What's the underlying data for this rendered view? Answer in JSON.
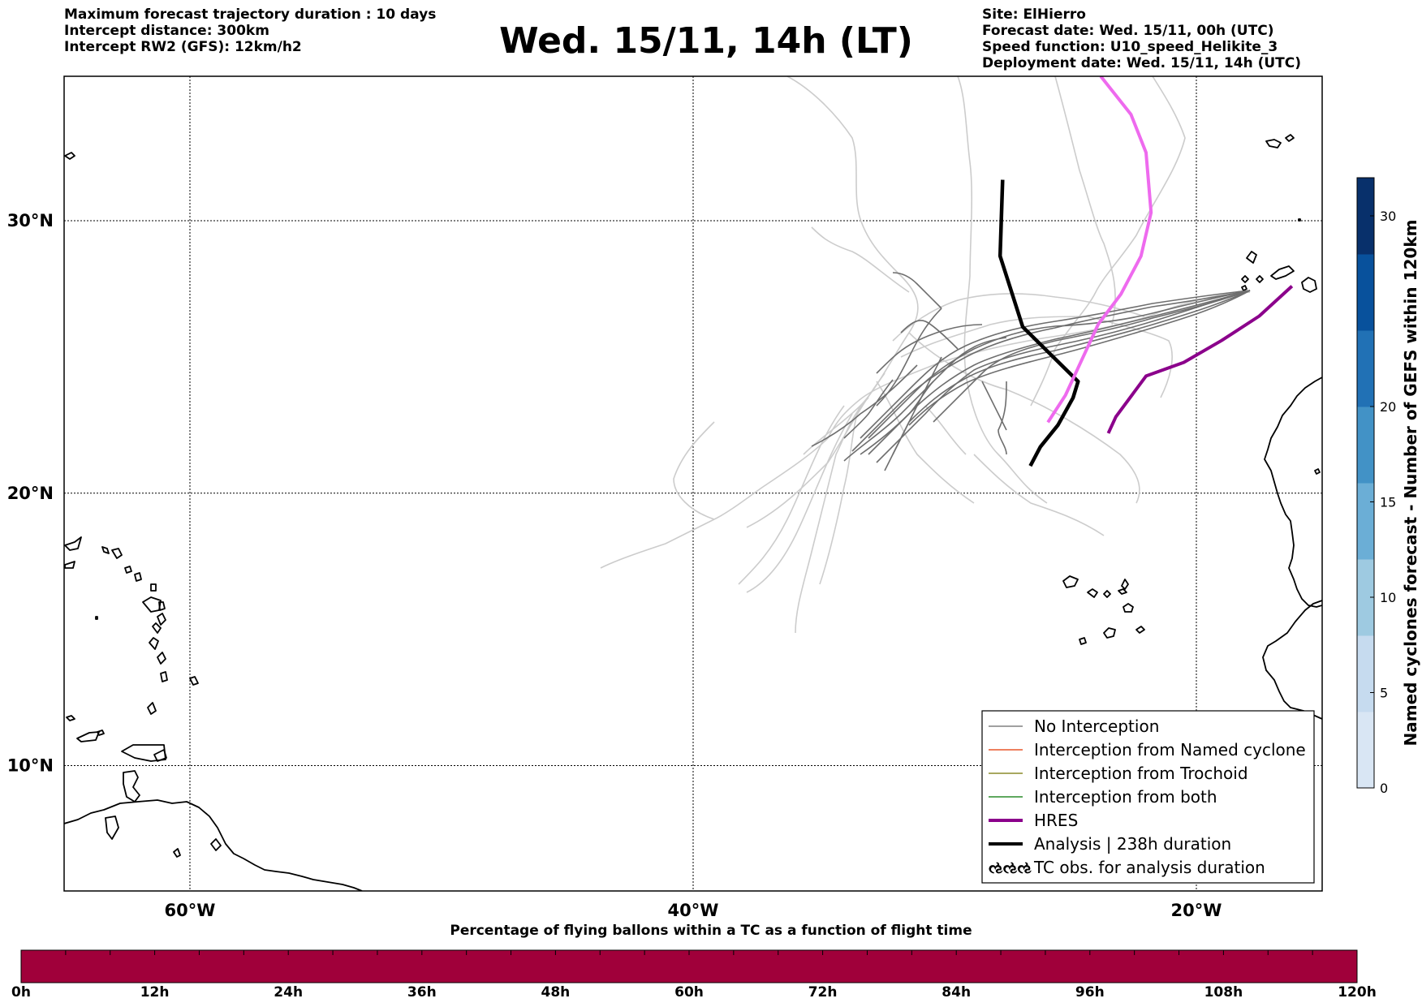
{
  "header": {
    "left_lines": [
      "Maximum forecast trajectory duration : 10 days",
      "Intercept distance: 300km",
      "Intercept RW2 (GFS):  12km/h2"
    ],
    "title": "Wed. 15/11, 14h (LT)",
    "right_lines": [
      "Site: ElHierro",
      "Forecast date: Wed. 15/11, 00h (UTC)",
      "Speed function: U10_speed_Helikite_3",
      "Deployment date: Wed. 15/11, 14h (UTC)"
    ]
  },
  "map": {
    "lat_labels": [
      "30°N",
      "20°N",
      "10°N"
    ],
    "lon_labels": [
      "60°W",
      "40°W",
      "20°W"
    ],
    "lat_values": [
      30,
      20,
      10
    ],
    "lon_values": [
      -60,
      -40,
      -20
    ],
    "extent": {
      "lon_min": -65,
      "lon_max": -15,
      "lat_min": 5.4,
      "lat_max": 35.3
    },
    "grid": true
  },
  "legend": {
    "items": [
      {
        "label": "No Interception",
        "color": "#808080",
        "style": "thin"
      },
      {
        "label": "Interception from Named cyclone",
        "color": "#e8562a",
        "style": "thin"
      },
      {
        "label": "Interception from Trochoid",
        "color": "#8c8c2a",
        "style": "thin"
      },
      {
        "label": "Interception from both",
        "color": "#2a8c2a",
        "style": "thin"
      },
      {
        "label": "HRES",
        "color": "#8b008b",
        "style": "thick"
      },
      {
        "label": "Analysis | 238h duration",
        "color": "#000000",
        "style": "thick"
      },
      {
        "label": "TC obs. for analysis duration",
        "color": "#000000",
        "style": "symbol",
        "symbol": "ઌઌઌ"
      }
    ]
  },
  "colorbar_right": {
    "label": "Named cyclones forecast - Number of GEFS within 120km",
    "ticks": [
      "0",
      "5",
      "10",
      "15",
      "20",
      "30"
    ],
    "tick_values": [
      0,
      5,
      10,
      15,
      20,
      30
    ],
    "max": 32,
    "colors": [
      "#d9e6f4",
      "#c6dbef",
      "#9ecae1",
      "#6baed6",
      "#4292c6",
      "#2171b5",
      "#08519c",
      "#08306b"
    ]
  },
  "timebar": {
    "title": "Percentage of flying ballons within a TC as a function of flight time",
    "labels": [
      "0h",
      "12h",
      "24h",
      "36h",
      "48h",
      "60h",
      "72h",
      "84h",
      "96h",
      "108h",
      "120h"
    ],
    "hours": [
      0,
      12,
      24,
      36,
      48,
      60,
      72,
      84,
      96,
      108,
      120
    ],
    "color": "#a0003a"
  },
  "chart_data": {
    "type": "map-trajectories",
    "site": "ElHierro",
    "analysis_track": [
      [
        -27.7,
        31.5
      ],
      [
        -27.8,
        28.7
      ],
      [
        -26.9,
        26.1
      ],
      [
        -24.7,
        24.1
      ],
      [
        -24.9,
        23.5
      ],
      [
        -25.5,
        22.5
      ],
      [
        -26.2,
        21.7
      ],
      [
        -26.6,
        21.0
      ]
    ],
    "hres_track": [
      [
        -23.5,
        22.2
      ],
      [
        -23.2,
        22.8
      ],
      [
        -22.0,
        24.3
      ],
      [
        -20.5,
        24.8
      ],
      [
        -19.0,
        25.6
      ],
      [
        -17.5,
        26.5
      ],
      [
        -16.2,
        27.6
      ]
    ],
    "balloon_track_tc_obs": [
      [
        -23.8,
        35.3
      ],
      [
        -22.6,
        33.9
      ],
      [
        -22.0,
        32.5
      ],
      [
        -21.8,
        30.3
      ],
      [
        -22.2,
        28.7
      ],
      [
        -23.0,
        27.3
      ],
      [
        -23.9,
        26.2
      ],
      [
        -24.7,
        24.6
      ],
      [
        -25.2,
        23.6
      ],
      [
        -25.9,
        22.6
      ]
    ]
  }
}
